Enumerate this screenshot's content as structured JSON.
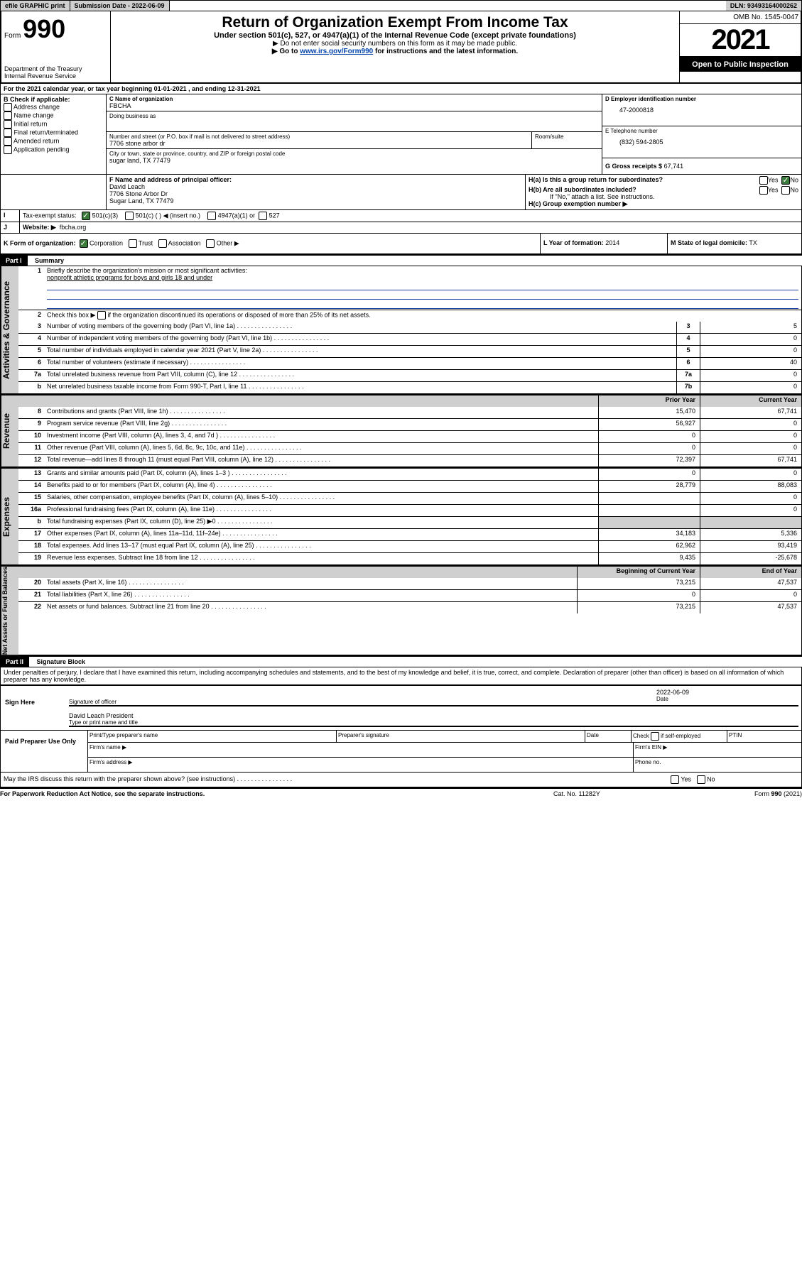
{
  "topbar": {
    "efile": "efile GRAPHIC print",
    "submission_label": "Submission Date - 2022-06-09",
    "dln": "DLN: 93493164000262"
  },
  "header": {
    "form_label": "Form",
    "form_number": "990",
    "dept": "Department of the Treasury",
    "irs": "Internal Revenue Service",
    "title": "Return of Organization Exempt From Income Tax",
    "subtitle": "Under section 501(c), 527, or 4947(a)(1) of the Internal Revenue Code (except private foundations)",
    "donot": "▶ Do not enter social security numbers on this form as it may be made public.",
    "goto_prefix": "▶ Go to ",
    "goto_link": "www.irs.gov/Form990",
    "goto_suffix": " for instructions and the latest information.",
    "omb": "OMB No. 1545-0047",
    "year": "2021",
    "inspect": "Open to Public Inspection"
  },
  "periodA": "For the 2021 calendar year, or tax year beginning 01-01-2021   , and ending 12-31-2021",
  "blockB": {
    "label": "B Check if applicable:",
    "opts": [
      "Address change",
      "Name change",
      "Initial return",
      "Final return/terminated",
      "Amended return",
      "Application pending"
    ]
  },
  "blockC": {
    "name_label": "C Name of organization",
    "name": "FBCHA",
    "dba_label": "Doing business as",
    "dba": "",
    "street_label": "Number and street (or P.O. box if mail is not delivered to street address)",
    "street": "7706 stone arbor dr",
    "room_label": "Room/suite",
    "city_label": "City or town, state or province, country, and ZIP or foreign postal code",
    "city": "sugar land, TX   77479"
  },
  "blockD": {
    "label": "D Employer identification number",
    "value": "47-2000818"
  },
  "blockE": {
    "label": "E Telephone number",
    "value": "(832) 594-2805"
  },
  "blockG": {
    "label": "G Gross receipts $",
    "value": "67,741"
  },
  "blockF": {
    "label": "F  Name and address of principal officer:",
    "name": "David Leach",
    "addr1": "7706 Stone Arbor Dr",
    "addr2": "Sugar Land, TX  77479"
  },
  "blockH": {
    "ha": "H(a)  Is this a group return for subordinates?",
    "hb": "H(b)  Are all subordinates included?",
    "ifno": "If \"No,\" attach a list. See instructions.",
    "hc": "H(c)  Group exemption number ▶",
    "yes": "Yes",
    "no": "No"
  },
  "blockI": {
    "label": "Tax-exempt status:",
    "o1": "501(c)(3)",
    "o2": "501(c) (  ) ◀ (insert no.)",
    "o3": "4947(a)(1) or",
    "o4": "527"
  },
  "blockJ": {
    "label": "Website: ▶",
    "value": "fbcha.org"
  },
  "blockK": {
    "label": "K Form of organization:",
    "o1": "Corporation",
    "o2": "Trust",
    "o3": "Association",
    "o4": "Other ▶"
  },
  "blockL": {
    "label": "L Year of formation:",
    "value": "2014"
  },
  "blockM": {
    "label": "M State of legal domicile:",
    "value": "TX"
  },
  "partI": {
    "label": "Part I",
    "title": "Summary"
  },
  "summary": {
    "q1": "Briefly describe the organization's mission or most significant activities:",
    "q1val": "nonprofit athletic programs for boys and girls 18 and under",
    "q2": "Check this box ▶         if the organization discontinued its operations or disposed of more than 25% of its net assets.",
    "rows_ag": [
      {
        "n": "3",
        "d": "Number of voting members of the governing body (Part VI, line 1a)",
        "box": "3",
        "v": "5"
      },
      {
        "n": "4",
        "d": "Number of independent voting members of the governing body (Part VI, line 1b)",
        "box": "4",
        "v": "0"
      },
      {
        "n": "5",
        "d": "Total number of individuals employed in calendar year 2021 (Part V, line 2a)",
        "box": "5",
        "v": "0"
      },
      {
        "n": "6",
        "d": "Total number of volunteers (estimate if necessary)",
        "box": "6",
        "v": "40"
      },
      {
        "n": "7a",
        "d": "Total unrelated business revenue from Part VIII, column (C), line 12",
        "box": "7a",
        "v": "0"
      },
      {
        "n": "b",
        "d": "Net unrelated business taxable income from Form 990-T, Part I, line 11",
        "box": "7b",
        "v": "0"
      }
    ],
    "col_prior": "Prior Year",
    "col_curr": "Current Year",
    "rev": [
      {
        "n": "8",
        "d": "Contributions and grants (Part VIII, line 1h)",
        "p": "15,470",
        "c": "67,741"
      },
      {
        "n": "9",
        "d": "Program service revenue (Part VIII, line 2g)",
        "p": "56,927",
        "c": "0"
      },
      {
        "n": "10",
        "d": "Investment income (Part VIII, column (A), lines 3, 4, and 7d )",
        "p": "0",
        "c": "0"
      },
      {
        "n": "11",
        "d": "Other revenue (Part VIII, column (A), lines 5, 6d, 8c, 9c, 10c, and 11e)",
        "p": "0",
        "c": "0"
      },
      {
        "n": "12",
        "d": "Total revenue—add lines 8 through 11 (must equal Part VIII, column (A), line 12)",
        "p": "72,397",
        "c": "67,741"
      }
    ],
    "exp": [
      {
        "n": "13",
        "d": "Grants and similar amounts paid (Part IX, column (A), lines 1–3 )",
        "p": "0",
        "c": "0"
      },
      {
        "n": "14",
        "d": "Benefits paid to or for members (Part IX, column (A), line 4)",
        "p": "28,779",
        "c": "88,083"
      },
      {
        "n": "15",
        "d": "Salaries, other compensation, employee benefits (Part IX, column (A), lines 5–10)",
        "p": "",
        "c": "0"
      },
      {
        "n": "16a",
        "d": "Professional fundraising fees (Part IX, column (A), line 11e)",
        "p": "",
        "c": "0"
      },
      {
        "n": "b",
        "d": "Total fundraising expenses (Part IX, column (D), line 25) ▶0",
        "p": "GRAY",
        "c": "GRAY"
      },
      {
        "n": "17",
        "d": "Other expenses (Part IX, column (A), lines 11a–11d, 11f–24e)",
        "p": "34,183",
        "c": "5,336"
      },
      {
        "n": "18",
        "d": "Total expenses. Add lines 13–17 (must equal Part IX, column (A), line 25)",
        "p": "62,962",
        "c": "93,419"
      },
      {
        "n": "19",
        "d": "Revenue less expenses. Subtract line 18 from line 12",
        "p": "9,435",
        "c": "-25,678"
      }
    ],
    "col_begin": "Beginning of Current Year",
    "col_end": "End of Year",
    "net": [
      {
        "n": "20",
        "d": "Total assets (Part X, line 16)",
        "p": "73,215",
        "c": "47,537"
      },
      {
        "n": "21",
        "d": "Total liabilities (Part X, line 26)",
        "p": "0",
        "c": "0"
      },
      {
        "n": "22",
        "d": "Net assets or fund balances. Subtract line 21 from line 20",
        "p": "73,215",
        "c": "47,537"
      }
    ],
    "side_ag": "Activities & Governance",
    "side_rev": "Revenue",
    "side_exp": "Expenses",
    "side_net": "Net Assets or Fund Balances"
  },
  "partII": {
    "label": "Part II",
    "title": "Signature Block"
  },
  "sig": {
    "penalties": "Under penalties of perjury, I declare that I have examined this return, including accompanying schedules and statements, and to the best of my knowledge and belief, it is true, correct, and complete. Declaration of preparer (other than officer) is based on all information of which preparer has any knowledge.",
    "sign_here": "Sign Here",
    "sig_officer": "Signature of officer",
    "date": "Date",
    "date_val": "2022-06-09",
    "officer_name": "David Leach  President",
    "type_name": "Type or print name and title",
    "paid": "Paid Preparer Use Only",
    "prep_name": "Print/Type preparer's name",
    "prep_sig": "Preparer's signature",
    "prep_date": "Date",
    "check_if": "Check         if self-employed",
    "ptin": "PTIN",
    "firm_name": "Firm's name   ▶",
    "firm_ein": "Firm's EIN ▶",
    "firm_addr": "Firm's address ▶",
    "phone": "Phone no."
  },
  "footer": {
    "discuss": "May the IRS discuss this return with the preparer shown above? (see instructions)",
    "yes": "Yes",
    "no": "No",
    "paperwork": "For Paperwork Reduction Act Notice, see the separate instructions.",
    "catno": "Cat. No. 11282Y",
    "formno": "Form 990 (2021)"
  }
}
